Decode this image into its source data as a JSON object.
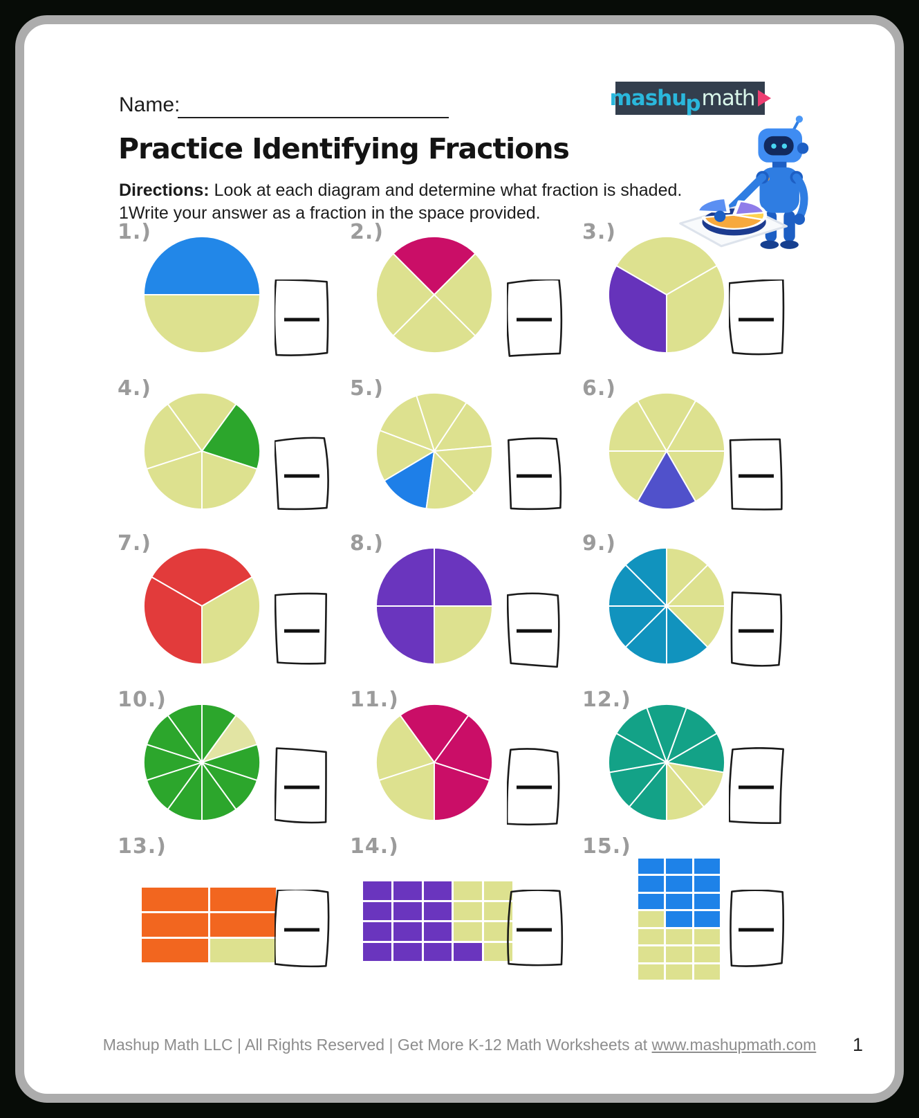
{
  "page": {
    "name_label": "Name:",
    "title": "Practice Identifying Fractions",
    "directions_label": "Directions:",
    "directions_text": " Look at each diagram and determine what fraction is shaded.",
    "directions_line2": "1Write your answer as a fraction in the space provided.",
    "footer_text": "Mashup Math LLC | All Rights Reserved | Get More K-12 Math Worksheets at ",
    "footer_link": "www.mashupmath.com",
    "page_number": "1"
  },
  "logo": {
    "part1": "mashu",
    "part2": "p",
    "part3": "math",
    "background": "#333e4d",
    "cyan": "#2ab7dc",
    "mint": "#d9f6ea",
    "pink_triangle": "#ee3e72",
    "mascot": "blue-robot-holding-pie-chart-tray"
  },
  "colors": {
    "unshaded_base": "#dde18f",
    "answer_box_stroke": "#1a1a1a"
  },
  "problems": [
    {
      "id": 1,
      "label": "1.)",
      "type": "pie",
      "parts": 2,
      "shaded_parts": 1,
      "fraction_shaded": "1/2",
      "start_angle": 0,
      "shaded_slices": [
        0
      ],
      "shaded_color": "#2287e8",
      "base_color": "#dde18f"
    },
    {
      "id": 2,
      "label": "2.)",
      "type": "pie",
      "parts": 4,
      "shaded_parts": 1,
      "fraction_shaded": "1/4",
      "start_angle": 45,
      "shaded_slices": [
        0
      ],
      "shaded_color": "#ca0e67",
      "base_color": "#dde18f"
    },
    {
      "id": 3,
      "label": "3.)",
      "type": "pie",
      "parts": 3,
      "shaded_parts": 1,
      "fraction_shaded": "1/3",
      "start_angle": 30,
      "shaded_slices": [
        1
      ],
      "shaded_color": "#6633bb",
      "base_color": "#dde18f"
    },
    {
      "id": 4,
      "label": "4.)",
      "type": "pie",
      "parts": 5,
      "shaded_parts": 1,
      "fraction_shaded": "1/5",
      "start_angle": -18,
      "shaded_slices": [
        0
      ],
      "shaded_color": "#2ca62c",
      "base_color": "#dde18f"
    },
    {
      "id": 5,
      "label": "5.)",
      "type": "pie",
      "parts": 7,
      "shaded_parts": 1,
      "fraction_shaded": "1/7",
      "start_angle": 5,
      "shaded_slices": [
        4
      ],
      "shaded_color": "#1e7fe8",
      "base_color": "#dde18f"
    },
    {
      "id": 6,
      "label": "6.)",
      "type": "pie",
      "parts": 6,
      "shaded_parts": 1,
      "fraction_shaded": "1/6",
      "start_angle": 0,
      "shaded_slices": [
        4
      ],
      "shaded_color": "#5051cb",
      "base_color": "#dde18f"
    },
    {
      "id": 7,
      "label": "7.)",
      "type": "pie",
      "parts": 3,
      "shaded_parts": 2,
      "fraction_shaded": "2/3",
      "start_angle": 30,
      "shaded_slices": [
        0,
        1
      ],
      "shaded_color": "#e23b3b",
      "base_color": "#dde18f"
    },
    {
      "id": 8,
      "label": "8.)",
      "type": "pie",
      "parts": 4,
      "shaded_parts": 3,
      "fraction_shaded": "3/4",
      "start_angle": 0,
      "shaded_slices": [
        0,
        1,
        2
      ],
      "shaded_color": "#6a35be",
      "base_color": "#dde18f"
    },
    {
      "id": 9,
      "label": "9.)",
      "type": "pie",
      "parts": 8,
      "shaded_parts": 5,
      "fraction_shaded": "5/8",
      "start_angle": 0,
      "shaded_slices": [
        2,
        3,
        4,
        5,
        6
      ],
      "shaded_color": "#1193be",
      "base_color": "#dde18f"
    },
    {
      "id": 10,
      "label": "10.)",
      "type": "pie",
      "parts": 10,
      "shaded_parts": 9,
      "fraction_shaded": "9/10",
      "start_angle": 18,
      "shaded_slices": [
        1,
        2,
        3,
        4,
        5,
        6,
        7,
        8,
        9
      ],
      "shaded_color": "#2ca62c",
      "base_color": "#e2e4a3"
    },
    {
      "id": 11,
      "label": "11.)",
      "type": "pie",
      "parts": 5,
      "shaded_parts": 3,
      "fraction_shaded": "3/5",
      "start_angle": -18,
      "shaded_slices": [
        0,
        1,
        4
      ],
      "shaded_color": "#ca0e67",
      "base_color": "#dde18f"
    },
    {
      "id": 12,
      "label": "12.)",
      "type": "pie",
      "parts": 9,
      "shaded_parts": 7,
      "fraction_shaded": "7/9",
      "start_angle": -10,
      "shaded_slices": [
        0,
        1,
        2,
        3,
        4,
        5,
        6
      ],
      "shaded_color": "#13a287",
      "base_color": "#dde18f"
    },
    {
      "id": 13,
      "label": "13.)",
      "type": "grid",
      "rows": 3,
      "cols": 2,
      "parts": 6,
      "shaded_parts": 5,
      "fraction_shaded": "5/6",
      "cells": [
        1,
        1,
        1,
        1,
        1,
        0
      ],
      "shaded_color": "#f2661f",
      "base_color": "#dde18f"
    },
    {
      "id": 14,
      "label": "14.)",
      "type": "grid",
      "rows": 4,
      "cols": 5,
      "parts": 20,
      "shaded_parts": 13,
      "fraction_shaded": "13/20",
      "cells": [
        1,
        1,
        1,
        0,
        0,
        1,
        1,
        1,
        0,
        0,
        1,
        1,
        1,
        0,
        0,
        1,
        1,
        1,
        1,
        0
      ],
      "shaded_color": "#6a35be",
      "base_color": "#dde18f"
    },
    {
      "id": 15,
      "label": "15.)",
      "type": "grid",
      "rows": 7,
      "cols": 3,
      "parts": 21,
      "shaded_parts": 11,
      "fraction_shaded": "11/21",
      "cells": [
        1,
        1,
        1,
        1,
        1,
        1,
        1,
        1,
        1,
        0,
        1,
        1,
        0,
        0,
        0,
        0,
        0,
        0,
        0,
        0,
        0
      ],
      "shaded_color": "#1e82e8",
      "base_color": "#dde18f"
    }
  ]
}
